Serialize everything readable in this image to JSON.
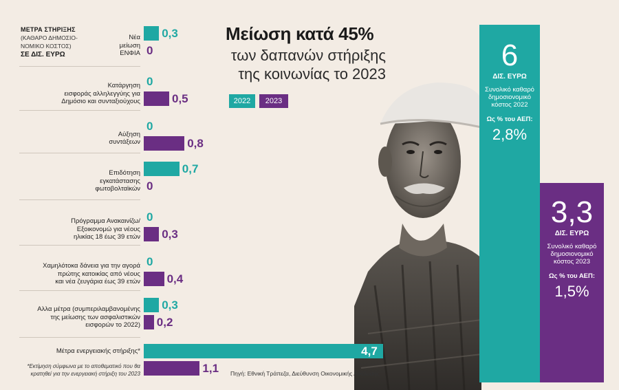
{
  "legend": {
    "line1": "ΜΕΤΡΑ ΣΤΗΡΙΞΗΣ",
    "line2": "(ΚΑΘΑΡΟ ΔΗΜΟΣΙΟ-",
    "line3": "ΝΟΜΙΚΟ ΚΟΣΤΟΣ)",
    "line4": "ΣΕ ΔΙΣ. ΕΥΡΩ"
  },
  "title": "Μείωση κατά 45%",
  "subtitle_line1": "των δαπανών στήριξης",
  "subtitle_line2": "της κοινωνίας το 2023",
  "chips": {
    "y2022": "2022",
    "y2023": "2023"
  },
  "colors": {
    "y2022": "#1fa8a3",
    "y2023": "#6a2e83"
  },
  "chart_data": {
    "type": "bar",
    "orientation": "horizontal",
    "categories": [
      "Νέα μείωση ΕΝΦΙΑ",
      "Κατάργηση εισφοράς αλληλεγγύης για Δημόσιο και συνταξιούχους",
      "Αύξηση συντάξεων",
      "Επιδότηση εγκατάστασης φωτοβολταϊκών",
      "Πρόγραμμα Ανακαινίζω/ Εξοικονομώ για νέους ηλικίας 18 έως 39 ετών",
      "Χαμηλότοκα δάνεια για την αγορά πρώτης κατοικίας από νέους και νέα ζευγάρια έως 39 ετών",
      "Αλλα μέτρα (συμπεριλαμβανομένης της μείωσης των ασφαλιστικών εισφορών το 2022)",
      "Μέτρα ενεργειακής στήριξης*"
    ],
    "category_lines": [
      [
        "Νέα",
        "μείωση",
        "ΕΝΦΙΑ"
      ],
      [
        "Κατάργηση",
        "εισφοράς αλληλεγγύης για",
        "Δημόσιο και συνταξιούχους"
      ],
      [
        "Αύξηση",
        "συντάξεων"
      ],
      [
        "Επιδότηση",
        "εγκατάστασης",
        "φωτοβολταϊκών"
      ],
      [
        "Πρόγραμμα Ανακαινίζω/",
        "Εξοικονομώ για νέους",
        "ηλικίας 18 έως 39 ετών"
      ],
      [
        "Χαμηλότοκα δάνεια για την αγορά",
        "πρώτης κατοικίας από νέους",
        "και νέα ζευγάρια έως 39 ετών"
      ],
      [
        "Αλλα μέτρα (συμπεριλαμβανομένης",
        "της μείωσης των ασφαλιστικών",
        "εισφορών το 2022)"
      ],
      [
        "Μέτρα ενεργειακής στήριξης*"
      ]
    ],
    "series": [
      {
        "name": "2022",
        "values": [
          0.3,
          0,
          0,
          0.7,
          0,
          0,
          0.3,
          4.7
        ],
        "labels": [
          "0,3",
          "0",
          "0",
          "0,7",
          "0",
          "0",
          "0,3",
          "4,7"
        ]
      },
      {
        "name": "2023",
        "values": [
          0,
          0.5,
          0.8,
          0,
          0.3,
          0.4,
          0.2,
          1.1
        ],
        "labels": [
          "0",
          "0,5",
          "0,8",
          "0",
          "0,3",
          "0,4",
          "0,2",
          "1,1"
        ]
      }
    ],
    "unit": "ΣΕ ΔΙΣ. ΕΥΡΩ"
  },
  "panel_2022": {
    "big": "6",
    "unit": "ΔΙΣ. ΕΥΡΩ",
    "desc1": "Συνολικό καθαρό",
    "desc2": "δημοσιονομικό",
    "desc3": "κόστος 2022",
    "pct_label": "Ως % του ΑΕΠ:",
    "pct": "2,8%"
  },
  "panel_2023": {
    "big": "3,3",
    "unit": "ΔΙΣ. ΕΥΡΩ",
    "desc1": "Συνολικό καθαρό",
    "desc2": "δημοσιονομικό",
    "desc3": "κόστος 2023",
    "pct_label": "Ως % του ΑΕΠ:",
    "pct": "1,5%"
  },
  "footnote_line1": "*Εκτίμηση σύμφωνα με το αποθεματικό που θα",
  "footnote_line2": "κρατηθεί για την ενεργειακή στήριξη του 2023",
  "source": "Πηγή: Εθνική Τράπεζα, Διεύθυνση Οικονομικής Ανάλυσης"
}
